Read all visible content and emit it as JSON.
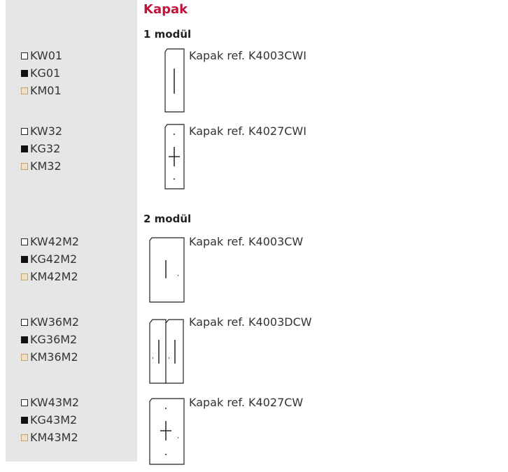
{
  "title": "Kapak",
  "sections": [
    {
      "heading": "1 modül",
      "items": [
        {
          "codes": [
            "KW01",
            "KG01",
            "KM01"
          ],
          "ref": "Kapak ref. K4003CWI"
        },
        {
          "codes": [
            "KW32",
            "KG32",
            "KM32"
          ],
          "ref": "Kapak ref. K4027CWI"
        }
      ]
    },
    {
      "heading": "2 modül",
      "items": [
        {
          "codes": [
            "KW42M2",
            "KG42M2",
            "KM42M2"
          ],
          "ref": "Kapak ref. K4003CW"
        },
        {
          "codes": [
            "KW36M2",
            "KG36M2",
            "KM36M2"
          ],
          "ref": "Kapak ref. K4003DCW"
        },
        {
          "codes": [
            "KW43M2",
            "KG43M2",
            "KM43M2"
          ],
          "ref": "Kapak ref. K4027CW"
        }
      ]
    }
  ]
}
